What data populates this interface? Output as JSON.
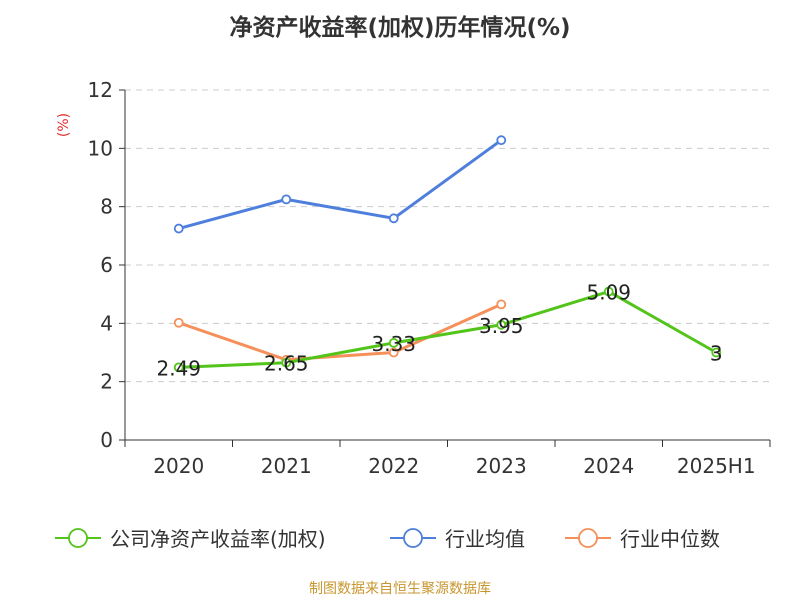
{
  "chart_data": {
    "type": "line",
    "title": "净资产收益率(加权)历年情况(%)",
    "ylabel": "(%)",
    "xlabel": "",
    "categories": [
      "2020",
      "2021",
      "2022",
      "2023",
      "2024",
      "2025H1"
    ],
    "ylim": [
      0,
      12
    ],
    "yticks": [
      0,
      2,
      4,
      6,
      8,
      10,
      12
    ],
    "grid": true,
    "legend_position": "bottom",
    "series": [
      {
        "name": "公司净资产收益率(加权)",
        "color": "#52c41a",
        "values": [
          2.49,
          2.65,
          3.33,
          3.95,
          5.09,
          3
        ],
        "labels": [
          "2.49",
          "2.65",
          "3.33",
          "3.95",
          "5.09",
          "3"
        ]
      },
      {
        "name": "行业均值",
        "color": "#4e7fdc",
        "values": [
          7.25,
          8.25,
          7.6,
          10.28,
          null,
          null
        ]
      },
      {
        "name": "行业中位数",
        "color": "#f5905a",
        "values": [
          4.02,
          2.75,
          3.0,
          4.65,
          null,
          null
        ]
      }
    ]
  },
  "footer": {
    "source": "制图数据来自恒生聚源数据库"
  },
  "colors": {
    "ylabel": "#e03030",
    "grid": "#cccccc",
    "axis": "#333333"
  }
}
